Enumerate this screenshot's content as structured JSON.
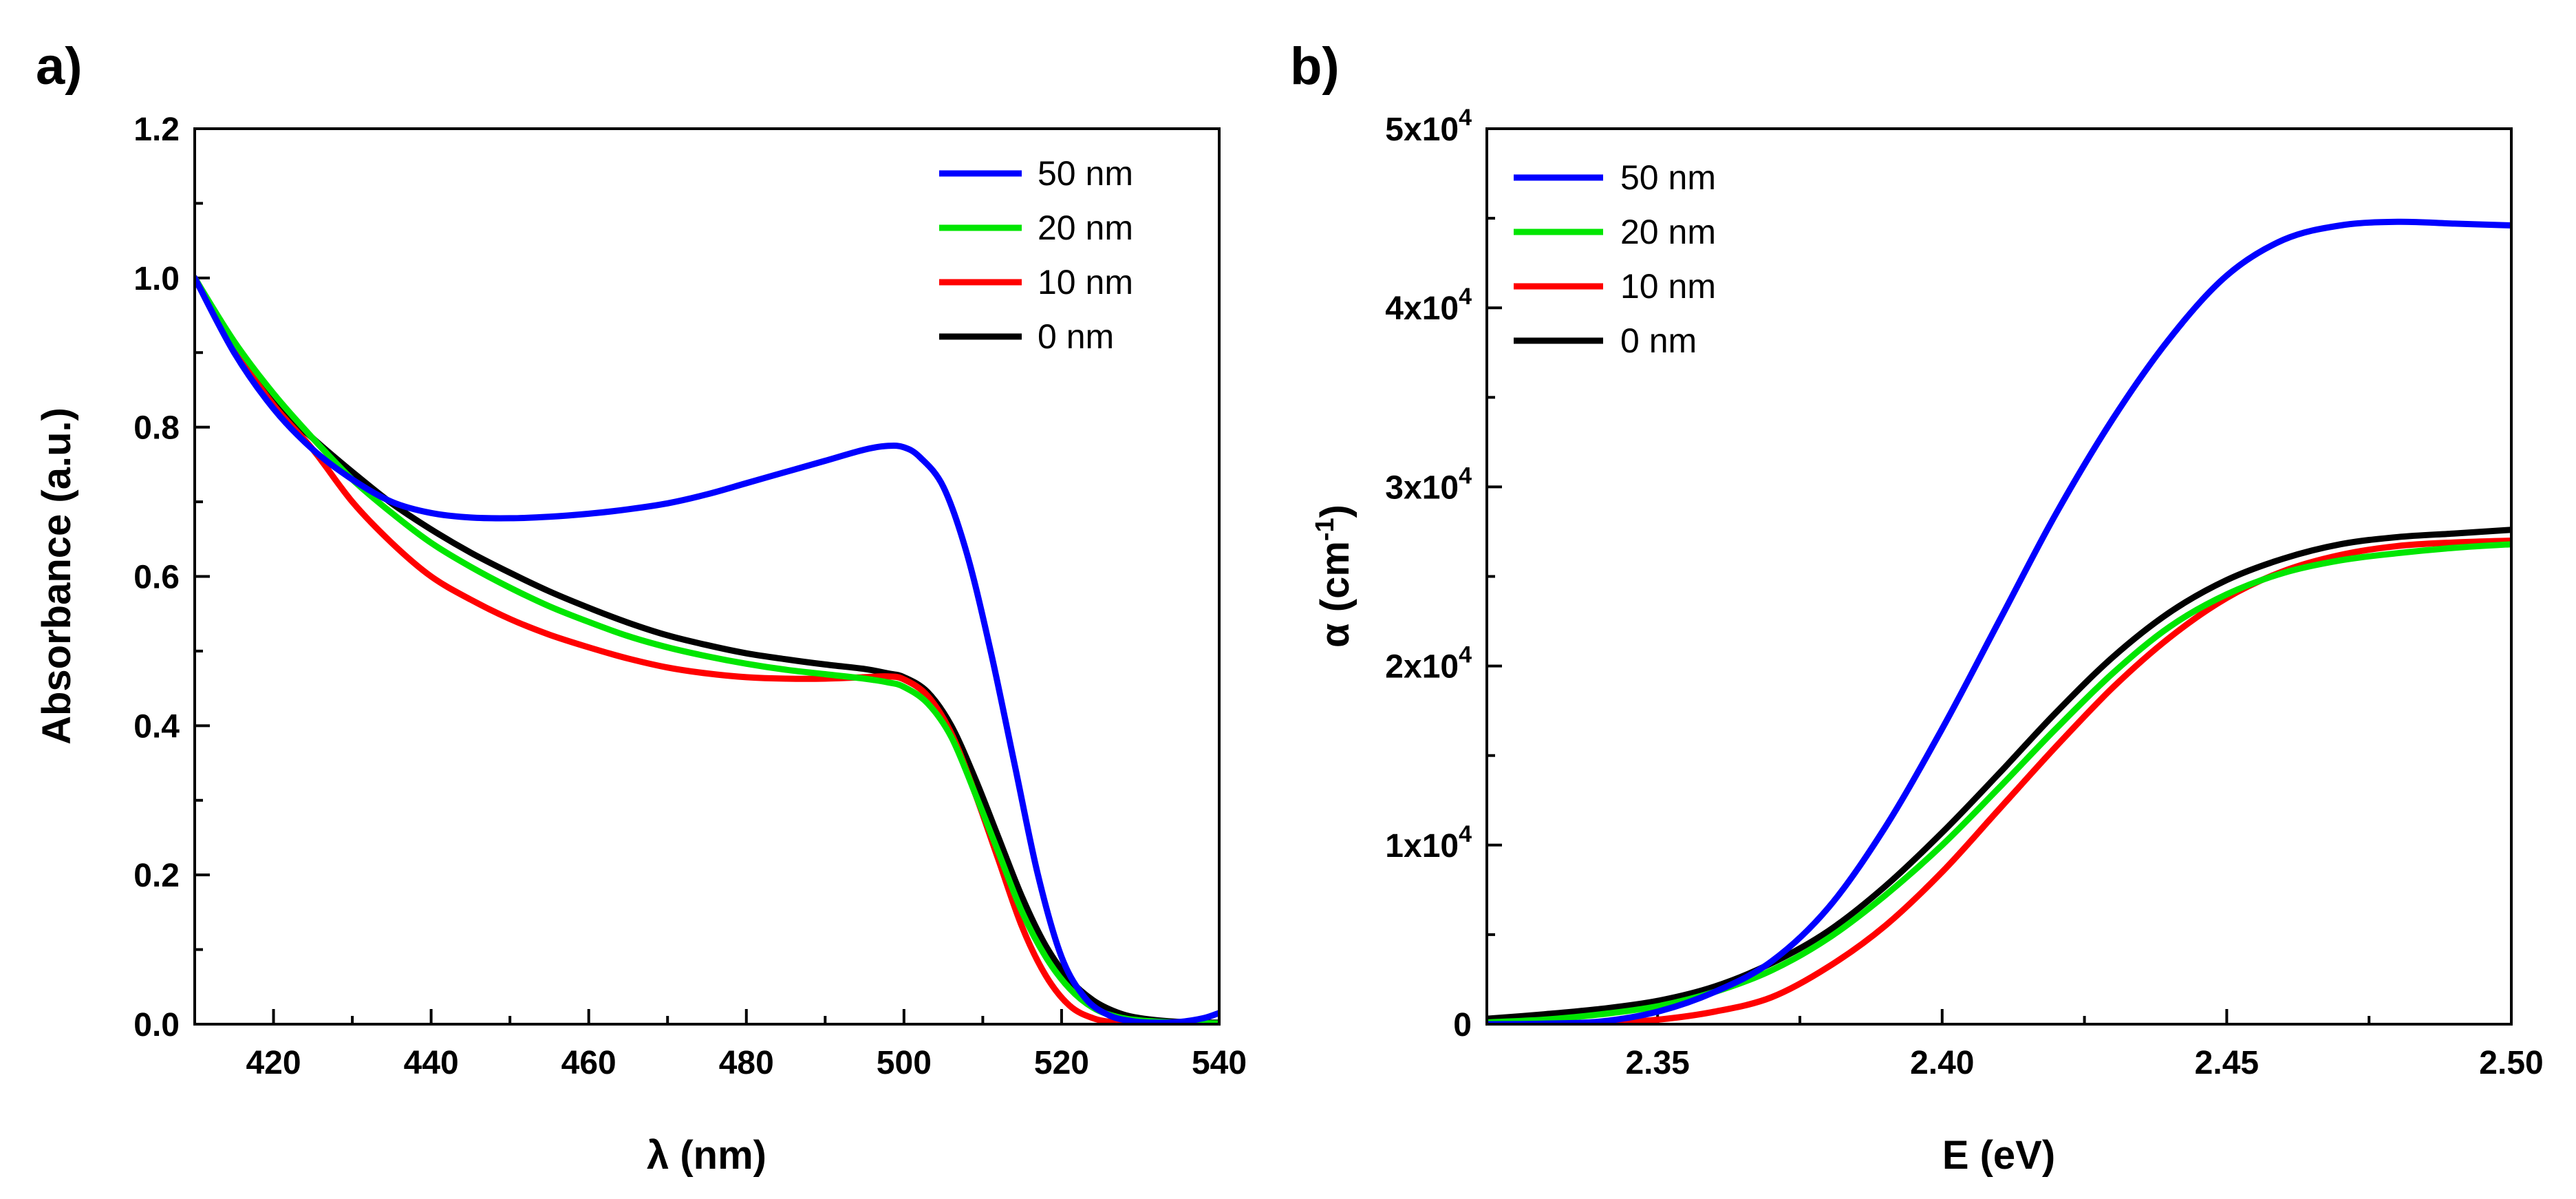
{
  "chart_data": [
    {
      "type": "line",
      "panel_label": "a)",
      "xlabel": "λ (nm)",
      "ylabel": "Absorbance (a.u.)",
      "xlim": [
        410,
        540
      ],
      "ylim": [
        0.0,
        1.2
      ],
      "x_ticks": [
        "420",
        "440",
        "460",
        "480",
        "500",
        "520",
        "540"
      ],
      "x_tick_values": [
        420,
        440,
        460,
        480,
        500,
        520,
        540
      ],
      "y_ticks": [
        "0.0",
        "0.2",
        "0.4",
        "0.6",
        "0.8",
        "1.0",
        "1.2"
      ],
      "y_tick_values": [
        0.0,
        0.2,
        0.4,
        0.6,
        0.8,
        1.0,
        1.2
      ],
      "legend_position": "top-right",
      "series": [
        {
          "name": "50 nm",
          "color": "#0000ff",
          "x": [
            410,
            415,
            420,
            425,
            430,
            435,
            440,
            445,
            450,
            455,
            460,
            465,
            470,
            475,
            480,
            485,
            490,
            495,
            498,
            500,
            502,
            505,
            508,
            511,
            514,
            517,
            520,
            523,
            526,
            529,
            532,
            535,
            538,
            540
          ],
          "y": [
            1.0,
            0.9,
            0.825,
            0.77,
            0.73,
            0.7,
            0.685,
            0.679,
            0.678,
            0.68,
            0.684,
            0.69,
            0.698,
            0.71,
            0.725,
            0.74,
            0.755,
            0.77,
            0.775,
            0.773,
            0.76,
            0.72,
            0.63,
            0.5,
            0.35,
            0.2,
            0.09,
            0.035,
            0.012,
            0.004,
            0.002,
            0.003,
            0.008,
            0.015
          ]
        },
        {
          "name": "20 nm",
          "color": "#00e600",
          "x": [
            410,
            415,
            420,
            425,
            430,
            435,
            440,
            445,
            450,
            455,
            460,
            465,
            470,
            475,
            480,
            485,
            490,
            495,
            498,
            500,
            503,
            506,
            509,
            512,
            515,
            518,
            521,
            524,
            527,
            530,
            535,
            540
          ],
          "y": [
            1.0,
            0.915,
            0.845,
            0.785,
            0.73,
            0.685,
            0.645,
            0.613,
            0.585,
            0.56,
            0.539,
            0.52,
            0.505,
            0.493,
            0.483,
            0.475,
            0.469,
            0.463,
            0.458,
            0.452,
            0.43,
            0.385,
            0.31,
            0.23,
            0.15,
            0.09,
            0.048,
            0.022,
            0.01,
            0.005,
            0.002,
            0.001
          ]
        },
        {
          "name": "10 nm",
          "color": "#ff0000",
          "x": [
            410,
            415,
            420,
            425,
            430,
            435,
            440,
            445,
            450,
            455,
            460,
            465,
            470,
            475,
            480,
            485,
            490,
            495,
            498,
            500,
            503,
            506,
            509,
            512,
            515,
            518,
            521,
            524,
            527,
            530,
            535,
            540
          ],
          "y": [
            1.0,
            0.905,
            0.83,
            0.77,
            0.7,
            0.645,
            0.6,
            0.569,
            0.543,
            0.522,
            0.505,
            0.49,
            0.478,
            0.47,
            0.465,
            0.463,
            0.463,
            0.465,
            0.466,
            0.462,
            0.44,
            0.39,
            0.31,
            0.22,
            0.13,
            0.065,
            0.025,
            0.008,
            0.002,
            0.0,
            0.0,
            0.0
          ]
        },
        {
          "name": "0 nm",
          "color": "#000000",
          "x": [
            410,
            415,
            420,
            425,
            430,
            435,
            440,
            445,
            450,
            455,
            460,
            465,
            470,
            475,
            480,
            485,
            490,
            495,
            498,
            500,
            503,
            506,
            509,
            512,
            515,
            518,
            521,
            524,
            527,
            530,
            535,
            540
          ],
          "y": [
            1.0,
            0.91,
            0.835,
            0.785,
            0.74,
            0.698,
            0.663,
            0.632,
            0.605,
            0.58,
            0.558,
            0.538,
            0.521,
            0.508,
            0.497,
            0.489,
            0.482,
            0.476,
            0.47,
            0.465,
            0.445,
            0.4,
            0.33,
            0.25,
            0.17,
            0.105,
            0.06,
            0.032,
            0.016,
            0.008,
            0.003,
            0.002
          ]
        }
      ]
    },
    {
      "type": "line",
      "panel_label": "b)",
      "xlabel": "E (eV)",
      "ylabel": "α (cm-1)",
      "ylabel_parts": {
        "main": "α (cm",
        "superscript": "-1",
        "close": ")"
      },
      "xlim": [
        2.32,
        2.5
      ],
      "ylim": [
        0,
        50000
      ],
      "x_ticks": [
        "2.35",
        "2.40",
        "2.45",
        "2.50"
      ],
      "x_tick_values": [
        2.35,
        2.4,
        2.45,
        2.5
      ],
      "y_ticks": [
        "0",
        "1x10",
        "2x10",
        "3x10",
        "4x10",
        "5x10"
      ],
      "y_tick_exponent": "4",
      "y_tick_values": [
        0,
        10000,
        20000,
        30000,
        40000,
        50000
      ],
      "legend_position": "top-left",
      "series": [
        {
          "name": "50 nm",
          "color": "#0000ff",
          "x": [
            2.32,
            2.33,
            2.34,
            2.35,
            2.36,
            2.37,
            2.38,
            2.39,
            2.4,
            2.41,
            2.42,
            2.43,
            2.44,
            2.45,
            2.46,
            2.47,
            2.48,
            2.49,
            2.5
          ],
          "y": [
            0,
            30,
            150,
            700,
            1800,
            3500,
            6500,
            11000,
            16500,
            22500,
            28500,
            33800,
            38300,
            41800,
            43800,
            44600,
            44800,
            44700,
            44600
          ]
        },
        {
          "name": "20 nm",
          "color": "#00e600",
          "x": [
            2.32,
            2.33,
            2.34,
            2.35,
            2.36,
            2.37,
            2.38,
            2.39,
            2.4,
            2.41,
            2.42,
            2.43,
            2.44,
            2.45,
            2.46,
            2.47,
            2.48,
            2.49,
            2.5
          ],
          "y": [
            100,
            250,
            550,
            1000,
            1800,
            3000,
            4800,
            7200,
            10000,
            13200,
            16500,
            19600,
            22200,
            24000,
            25200,
            25900,
            26300,
            26600,
            26800
          ]
        },
        {
          "name": "10 nm",
          "color": "#ff0000",
          "x": [
            2.32,
            2.33,
            2.34,
            2.35,
            2.36,
            2.37,
            2.38,
            2.39,
            2.4,
            2.41,
            2.42,
            2.43,
            2.44,
            2.45,
            2.46,
            2.47,
            2.48,
            2.49,
            2.5
          ],
          "y": [
            0,
            0,
            50,
            250,
            700,
            1500,
            3200,
            5500,
            8500,
            12000,
            15500,
            18800,
            21600,
            23800,
            25300,
            26200,
            26700,
            26900,
            27000
          ]
        },
        {
          "name": "0 nm",
          "color": "#000000",
          "x": [
            2.32,
            2.33,
            2.34,
            2.35,
            2.36,
            2.37,
            2.38,
            2.39,
            2.4,
            2.41,
            2.42,
            2.43,
            2.44,
            2.45,
            2.46,
            2.47,
            2.48,
            2.49,
            2.5
          ],
          "y": [
            300,
            550,
            850,
            1300,
            2100,
            3400,
            5200,
            7700,
            10700,
            14000,
            17400,
            20500,
            23000,
            24800,
            26000,
            26800,
            27200,
            27400,
            27600
          ]
        }
      ]
    }
  ]
}
